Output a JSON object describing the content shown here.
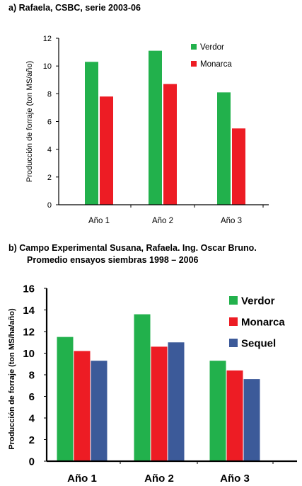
{
  "chart_data": [
    {
      "type": "bar",
      "title": "a)  Rafaela, CSBC, serie 2003-06",
      "ylabel": "Producción de forraje (ton MS/año)",
      "xlabel": "",
      "categories": [
        "Año 1",
        "Año 2",
        "Año 3"
      ],
      "series": [
        {
          "name": "Verdor",
          "color": "#22b14c",
          "values": [
            10.3,
            11.1,
            8.1
          ]
        },
        {
          "name": "Monarca",
          "color": "#ed1c24",
          "values": [
            7.8,
            8.7,
            5.5
          ]
        }
      ],
      "ylim": [
        0,
        12
      ],
      "yticks": [
        0,
        2,
        4,
        6,
        8,
        10,
        12
      ],
      "legend": "top-right",
      "grid": false
    },
    {
      "type": "bar",
      "title": "b)  Campo Experimental Susana, Rafaela.  Ing. Oscar Bruno.",
      "subtitle": "Promedio ensayos siembras 1998 – 2006",
      "ylabel": "Producción de forraje (ton MS/ha/año)",
      "xlabel": "",
      "categories": [
        "Año 1",
        "Año 2",
        "Año 3"
      ],
      "series": [
        {
          "name": "Verdor",
          "color": "#22b14c",
          "values": [
            11.5,
            13.6,
            9.3
          ]
        },
        {
          "name": "Monarca",
          "color": "#ed1c24",
          "values": [
            10.2,
            10.6,
            8.4
          ]
        },
        {
          "name": "Sequel",
          "color": "#3c5a99",
          "values": [
            9.3,
            11.0,
            7.6
          ]
        }
      ],
      "ylim": [
        0,
        16
      ],
      "yticks": [
        0,
        2,
        4,
        6,
        8,
        10,
        12,
        14,
        16
      ],
      "legend": "top-right",
      "grid": false
    }
  ]
}
